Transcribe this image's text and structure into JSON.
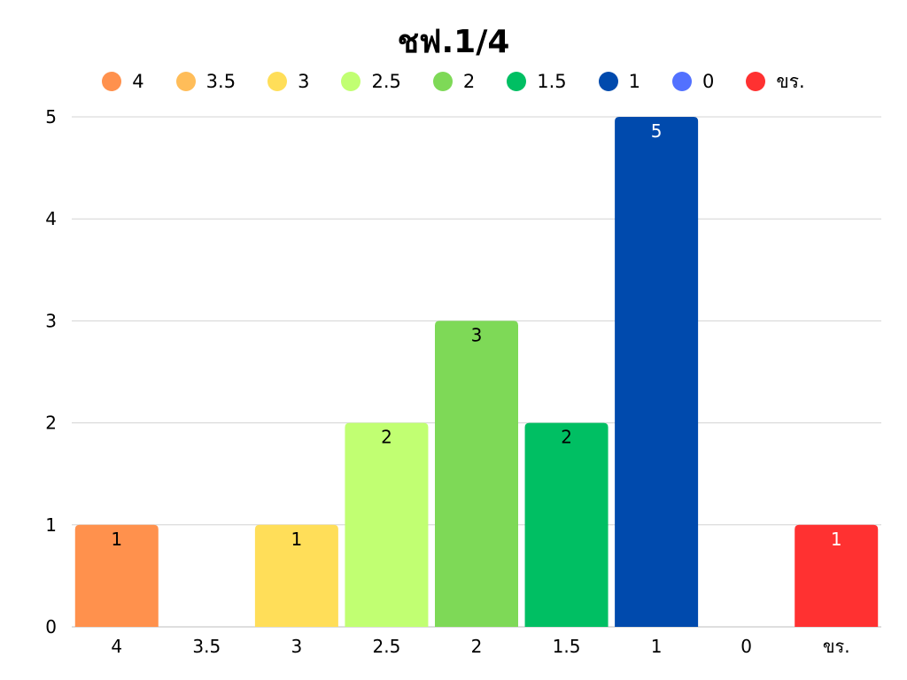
{
  "chart_data": {
    "type": "bar",
    "title": "ชฟ.1/4",
    "categories": [
      "4",
      "3.5",
      "3",
      "2.5",
      "2",
      "1.5",
      "1",
      "0",
      "ขร."
    ],
    "values": [
      1,
      0,
      1,
      2,
      3,
      2,
      5,
      0,
      1
    ],
    "colors": [
      "#ff914d",
      "#ffbd59",
      "#ffde59",
      "#c1ff72",
      "#7ed957",
      "#00bf63",
      "#004aad",
      "#5271ff",
      "#ff3131"
    ],
    "label_colors": [
      "#000000",
      "#000000",
      "#000000",
      "#000000",
      "#000000",
      "#000000",
      "#ffffff",
      "#000000",
      "#ffffff"
    ],
    "legend": [
      "4",
      "3.5",
      "3",
      "2.5",
      "2",
      "1.5",
      "1",
      "0",
      "ขร."
    ],
    "legend_placement": "top",
    "ylim": [
      0,
      5
    ],
    "yticks": [
      "0",
      "1",
      "2",
      "3",
      "4",
      "5"
    ],
    "grid": true,
    "xlabel": "",
    "ylabel": ""
  }
}
